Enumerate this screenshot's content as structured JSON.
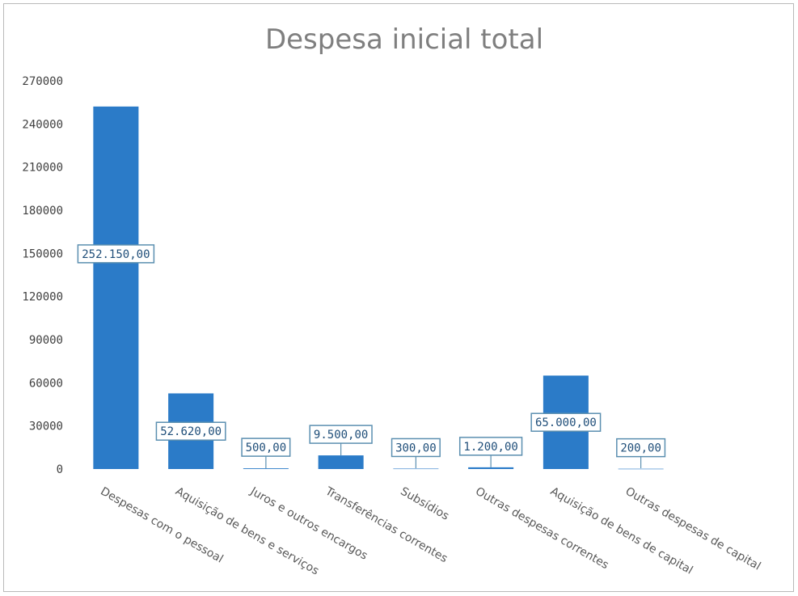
{
  "chart_data": {
    "type": "bar",
    "title": "Despesa inicial total",
    "xlabel": "",
    "ylabel": "",
    "ylim": [
      0,
      270000
    ],
    "yticks": [
      0,
      30000,
      60000,
      90000,
      120000,
      150000,
      180000,
      210000,
      240000,
      270000
    ],
    "grid": false,
    "legend": "none",
    "bar_color": "#2b7bc8",
    "label_border_color": "#5b8fb0",
    "categories": [
      "Despesas com o pessoal",
      "Aquisição  de bens e serviços",
      "Juros e outros encargos",
      "Transferências correntes",
      "Subsídios",
      "Outras despesas correntes",
      "Aquisição de bens de capital",
      "Outras despesas de capital"
    ],
    "values": [
      252150,
      52620,
      500,
      9500,
      300,
      1200,
      65000,
      200
    ],
    "data_labels": [
      "252.150,00",
      "52.620,00",
      "500,00",
      "9.500,00",
      "300,00",
      "1.200,00",
      "65.000,00",
      "200,00"
    ]
  }
}
